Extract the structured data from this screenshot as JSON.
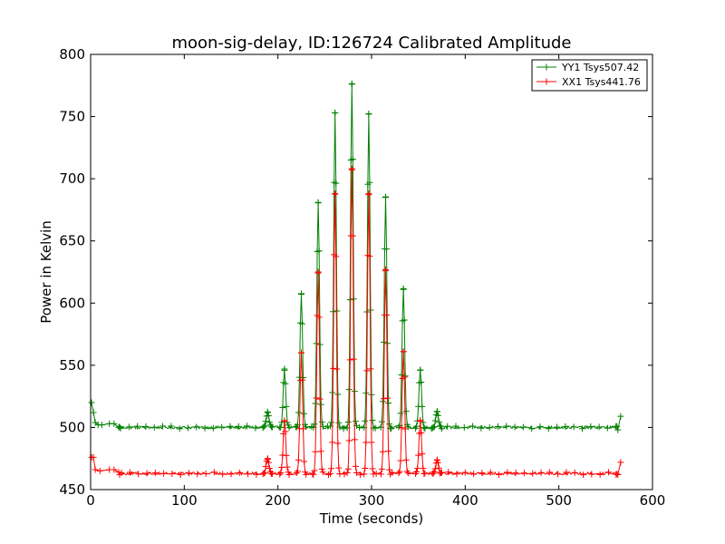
{
  "chart_data": {
    "type": "line",
    "title": "moon-sig-delay, ID:126724 Calibrated Amplitude",
    "xlabel": "Time (seconds)",
    "ylabel": "Power in Kelvin",
    "xlim": [
      0,
      600
    ],
    "ylim": [
      450,
      800
    ],
    "xticks": [
      0,
      100,
      200,
      300,
      400,
      500,
      600
    ],
    "yticks": [
      450,
      500,
      550,
      600,
      650,
      700,
      750,
      800
    ],
    "grid": false,
    "legend_position": "top-right",
    "baseline_range_x": [
      0,
      566
    ],
    "series": [
      {
        "name": "YY1 Tsys507.42",
        "color": "#008000",
        "marker": "+",
        "baseline": 500,
        "peaks": [
          {
            "x": 189,
            "y": 512
          },
          {
            "x": 207,
            "y": 546
          },
          {
            "x": 225,
            "y": 607
          },
          {
            "x": 243,
            "y": 681
          },
          {
            "x": 261,
            "y": 753
          },
          {
            "x": 279,
            "y": 776
          },
          {
            "x": 297,
            "y": 752
          },
          {
            "x": 315,
            "y": 685
          },
          {
            "x": 334,
            "y": 611
          },
          {
            "x": 352,
            "y": 546
          },
          {
            "x": 370,
            "y": 513
          }
        ],
        "start_points": [
          {
            "x": 1,
            "y": 520
          },
          {
            "x": 3,
            "y": 512
          },
          {
            "x": 5,
            "y": 504
          },
          {
            "x": 8,
            "y": 502
          },
          {
            "x": 12,
            "y": 502
          },
          {
            "x": 20,
            "y": 503
          },
          {
            "x": 25,
            "y": 503
          },
          {
            "x": 30,
            "y": 500
          }
        ],
        "end_points": [
          {
            "x": 563,
            "y": 498
          },
          {
            "x": 566,
            "y": 509
          }
        ]
      },
      {
        "name": "XX1 Tsys441.76",
        "color": "#ff0000",
        "marker": "+",
        "baseline": 463,
        "peaks": [
          {
            "x": 189,
            "y": 475
          },
          {
            "x": 207,
            "y": 505
          },
          {
            "x": 225,
            "y": 560
          },
          {
            "x": 243,
            "y": 625
          },
          {
            "x": 261,
            "y": 688
          },
          {
            "x": 279,
            "y": 708
          },
          {
            "x": 297,
            "y": 688
          },
          {
            "x": 315,
            "y": 627
          },
          {
            "x": 334,
            "y": 561
          },
          {
            "x": 352,
            "y": 505
          },
          {
            "x": 370,
            "y": 474
          }
        ],
        "start_points": [
          {
            "x": 1,
            "y": 476
          },
          {
            "x": 3,
            "y": 476
          },
          {
            "x": 5,
            "y": 466
          },
          {
            "x": 10,
            "y": 465
          },
          {
            "x": 20,
            "y": 466
          },
          {
            "x": 25,
            "y": 466
          },
          {
            "x": 30,
            "y": 464
          }
        ],
        "end_points": [
          {
            "x": 563,
            "y": 462
          },
          {
            "x": 566,
            "y": 472
          }
        ]
      }
    ]
  }
}
